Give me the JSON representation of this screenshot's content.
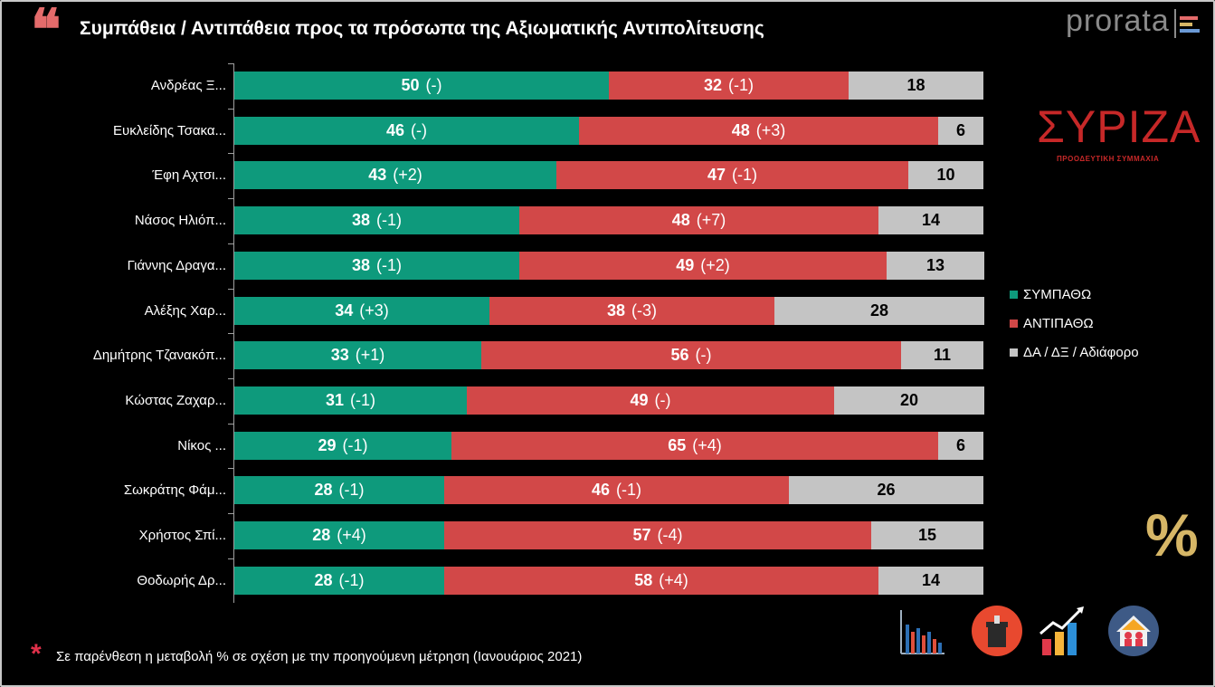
{
  "title": "Συμπάθεια / Αντιπάθεια προς τα πρόσωπα της Αξιωματικής Αντιπολίτευσης",
  "quote_mark": "❝",
  "brand": "prorata",
  "party_logo": {
    "word": "ΣΥΡΙΖΑ",
    "subtitle": "ΠΡΟΟΔΕΥΤΙΚΗ ΣΥΜΜΑΧΙΑ"
  },
  "percent_symbol": "%",
  "footnote": {
    "star": "*",
    "text": "Σε παρένθεση η μεταβολή % σε σχέση με την προηγούμενη μέτρηση (Ιανουάριος 2021)"
  },
  "colors": {
    "sympatho": "#0e9a7c",
    "antipatho": "#d24848",
    "neutral": "#c4c4c4",
    "accent": "#e46b6b"
  },
  "icons": [
    "bar-chart-icon",
    "ballot-box-icon",
    "growth-chart-icon",
    "house-family-icon"
  ],
  "chart_data": {
    "type": "bar",
    "orientation": "horizontal",
    "stacked": true,
    "categories": [
      "Ανδρέας Ξ...",
      "Ευκλείδης Τσακα...",
      "Έφη Αχτσι...",
      "Νάσος Ηλιόπ...",
      "Γιάννης Δραγα...",
      "Αλέξης Χαρ...",
      "Δημήτρης Τζανακόπ...",
      "Κώστας Ζαχαρ...",
      "Νίκος ...",
      "Σωκράτης Φάμ...",
      "Χρήστος Σπί...",
      "Θοδωρής Δρ..."
    ],
    "series": [
      {
        "name": "ΣΥΜΠΑΘΩ",
        "values": [
          50,
          46,
          43,
          38,
          38,
          34,
          33,
          31,
          29,
          28,
          28,
          28
        ],
        "changes": [
          "(-)",
          "(-)",
          "(+2)",
          "(-1)",
          "(-1)",
          "(+3)",
          "(+1)",
          "(-1)",
          "(-1)",
          "(-1)",
          "(+4)",
          "(-1)"
        ]
      },
      {
        "name": "ΑΝΤΙΠΑΘΩ",
        "values": [
          32,
          48,
          47,
          48,
          49,
          38,
          56,
          49,
          65,
          46,
          57,
          58
        ],
        "changes": [
          "(-1)",
          "(+3)",
          "(-1)",
          "(+7)",
          "(+2)",
          "(-3)",
          "(-)",
          "(-)",
          "(+4)",
          "(-1)",
          "(-4)",
          "(+4)"
        ]
      },
      {
        "name": "ΔΑ / ΔΞ / Αδιάφορο",
        "values": [
          18,
          6,
          10,
          14,
          13,
          28,
          11,
          20,
          6,
          26,
          15,
          14
        ],
        "changes": [
          "",
          "",
          "",
          "",
          "",
          "",
          "",
          "",
          "",
          "",
          "",
          ""
        ]
      }
    ],
    "xlim": [
      0,
      100
    ],
    "legend_position": "right",
    "grid": false
  }
}
